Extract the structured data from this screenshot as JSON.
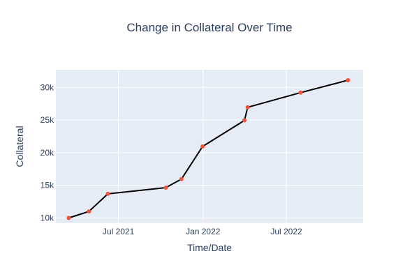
{
  "chart_data": {
    "type": "line",
    "title": "Change in Collateral Over Time",
    "xlabel": "Time/Date",
    "ylabel": "Collateral",
    "x": [
      "2021-03-15",
      "2021-04-28",
      "2021-06-08",
      "2021-10-12",
      "2021-11-15",
      "2021-12-31",
      "2022-04-01",
      "2022-04-08",
      "2022-08-01",
      "2022-11-12"
    ],
    "values": [
      10000,
      11000,
      13700,
      14650,
      15950,
      20950,
      24950,
      26950,
      29200,
      31100
    ],
    "xlim": [
      "2021-02-15",
      "2022-12-15"
    ],
    "ylim": [
      9200,
      32700
    ],
    "x_ticks": [
      {
        "date": "2021-07-01",
        "label": "Jul 2021"
      },
      {
        "date": "2022-01-01",
        "label": "Jan 2022"
      },
      {
        "date": "2022-07-01",
        "label": "Jul 2022"
      }
    ],
    "y_ticks": [
      {
        "value": 10000,
        "label": "10k"
      },
      {
        "value": 15000,
        "label": "15k"
      },
      {
        "value": 20000,
        "label": "20k"
      },
      {
        "value": 25000,
        "label": "25k"
      },
      {
        "value": 30000,
        "label": "30k"
      }
    ],
    "grid": true,
    "colors": {
      "plot_bg": "#e5ecf6",
      "grid": "#ffffff",
      "line": "#000000",
      "marker": "#ef553b",
      "text": "#2a3f5f"
    }
  }
}
